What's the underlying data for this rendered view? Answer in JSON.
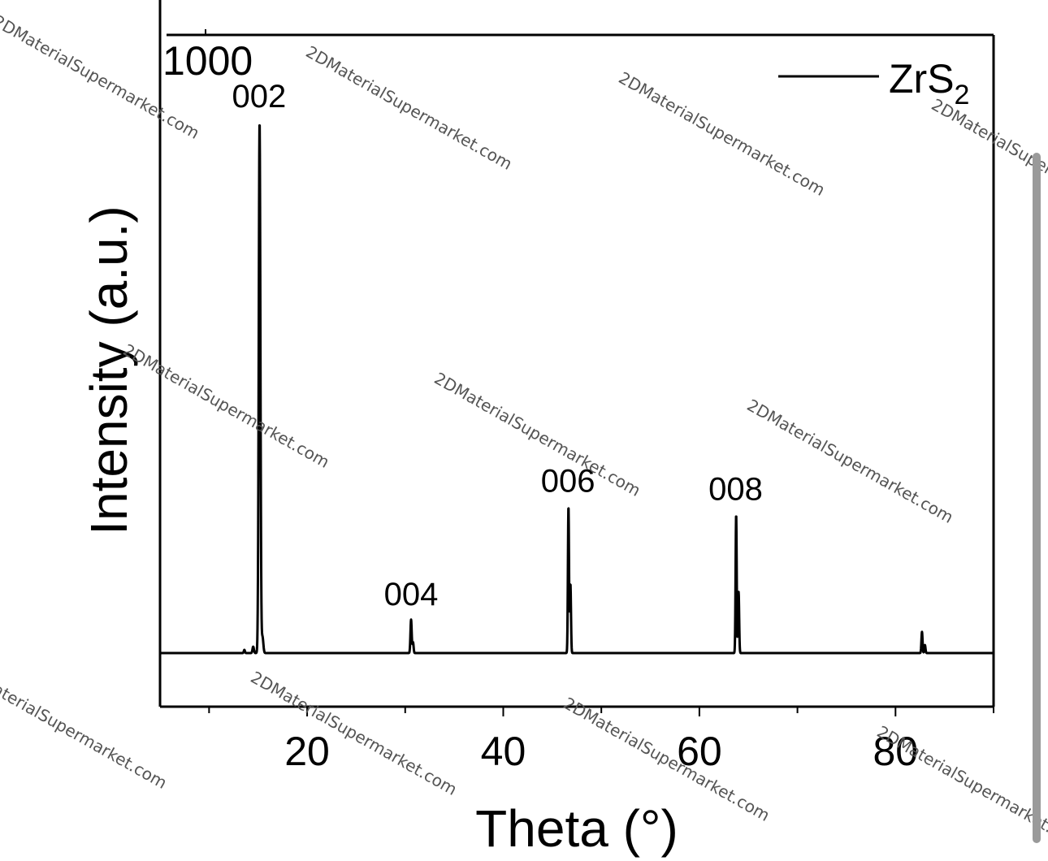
{
  "chart_data": {
    "type": "line",
    "title": "",
    "xlabel": "Theta (°)",
    "ylabel": "Intensity (a.u.)",
    "xlim": [
      5,
      90
    ],
    "x_ticks": [
      20,
      40,
      60,
      80
    ],
    "y_tick_labels": [
      "1000"
    ],
    "legend": {
      "label": "ZrS",
      "subscript": "2",
      "placement": "top-right"
    },
    "series": [
      {
        "name": "ZrS2",
        "color": "#000000",
        "peaks": [
          {
            "x": 13.6,
            "height": 0.006,
            "width": 0.08
          },
          {
            "x": 14.5,
            "height": 0.012,
            "width": 0.1
          },
          {
            "x": 15.15,
            "height": 1.0,
            "width": 0.12
          },
          {
            "x": 15.45,
            "height": 0.03,
            "width": 0.12
          },
          {
            "x": 30.6,
            "height": 0.063,
            "width": 0.09
          },
          {
            "x": 30.8,
            "height": 0.02,
            "width": 0.08
          },
          {
            "x": 46.65,
            "height": 0.276,
            "width": 0.08
          },
          {
            "x": 46.85,
            "height": 0.13,
            "width": 0.08
          },
          {
            "x": 63.75,
            "height": 0.261,
            "width": 0.08
          },
          {
            "x": 64.0,
            "height": 0.115,
            "width": 0.08
          },
          {
            "x": 82.7,
            "height": 0.04,
            "width": 0.08
          },
          {
            "x": 83.0,
            "height": 0.015,
            "width": 0.08
          }
        ]
      }
    ],
    "annotations": [
      {
        "text": "002",
        "x": 15.1
      },
      {
        "text": "004",
        "x": 30.6
      },
      {
        "text": "006",
        "x": 46.6
      },
      {
        "text": "008",
        "x": 63.7
      }
    ]
  },
  "watermark": "2DMaterialSupermarket.com",
  "colors": {
    "line": "#000000",
    "axis": "#000000",
    "watermark": "#555555",
    "scrollbar": "#9a9a9a"
  }
}
